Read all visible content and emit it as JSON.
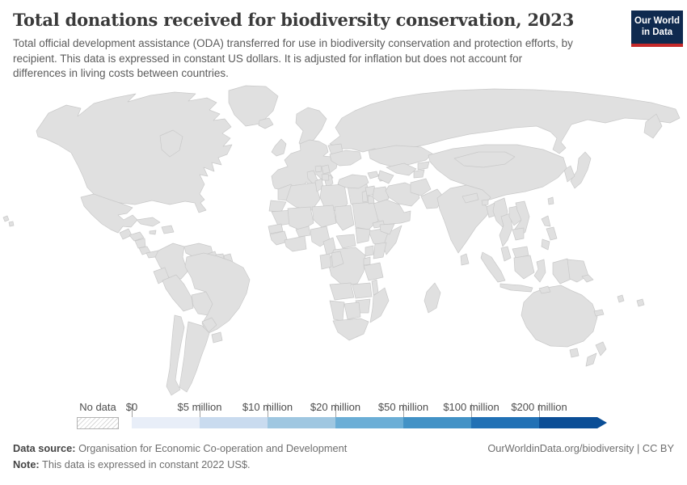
{
  "header": {
    "title": "Total donations received for biodiversity conservation, 2023",
    "subtitle": "Total official development assistance (ODA) transferred for use in biodiversity conservation and protection efforts, by recipient. This data is expressed in constant US dollars. It is adjusted for inflation but does not account for differences in living costs between countries.",
    "logo": {
      "line1": "Our World",
      "line2": "in Data",
      "bg_color": "#0f2a4f",
      "accent_color": "#c5292a"
    }
  },
  "footer": {
    "source_label": "Data source:",
    "source_text": "Organisation for Economic Co-operation and Development",
    "note_label": "Note:",
    "note_text": "This data is expressed in constant 2022 US$.",
    "link_text": "OurWorldinData.org/biodiversity | CC BY"
  },
  "chart_data": {
    "type": "heatmap",
    "variant": "world-choropleth",
    "title": "Total donations received for biodiversity conservation, 2023",
    "year": 2023,
    "unit": "constant 2022 US$",
    "legend": {
      "no_data_label": "No data",
      "tick_labels": [
        "$0",
        "$5 million",
        "$10 million",
        "$20 million",
        "$50 million",
        "$100 million",
        "$200 million"
      ],
      "colors": [
        "#e8eef8",
        "#c9dbef",
        "#9fc7e1",
        "#6baed6",
        "#4292c6",
        "#2171b5",
        "#0b4e96"
      ],
      "bucket_ranges": [
        "$0–$5 million",
        "$5–$10 million",
        "$10–$20 million",
        "$20–$50 million",
        "$50–$100 million",
        "$100–$200 million",
        "$200 million+"
      ],
      "no_data_bucket": 0
    },
    "countries": [
      {
        "id": "north-america",
        "name": "Canada and United States",
        "bucket": 0
      },
      {
        "id": "hawaii",
        "name": "Hawaii (United States)",
        "bucket": 0
      },
      {
        "id": "greenland",
        "name": "Greenland",
        "bucket": 0
      },
      {
        "id": "iceland",
        "name": "Iceland",
        "bucket": 0
      },
      {
        "id": "united-kingdom",
        "name": "United Kingdom & Ireland",
        "bucket": 0
      },
      {
        "id": "scandinavia",
        "name": "Scandinavia",
        "bucket": 0
      },
      {
        "id": "europe",
        "name": "Western & Central Europe",
        "bucket": 0
      },
      {
        "id": "italy",
        "name": "Italy",
        "bucket": 0
      },
      {
        "id": "greece",
        "name": "Greece",
        "bucket": 0
      },
      {
        "id": "russia",
        "name": "Russia",
        "bucket": 0
      },
      {
        "id": "japan",
        "name": "Japan",
        "bucket": 0
      },
      {
        "id": "korea",
        "name": "Korea",
        "bucket": 0
      },
      {
        "id": "saudi-arabia",
        "name": "Saudi Arabia & Gulf states",
        "bucket": 0
      },
      {
        "id": "chile",
        "name": "Chile",
        "bucket": 0
      },
      {
        "id": "australia",
        "name": "Australia",
        "bucket": 0
      },
      {
        "id": "new-zealand",
        "name": "New Zealand",
        "bucket": 0
      },
      {
        "id": "new-caledonia",
        "name": "New Caledonia",
        "bucket": 0
      },
      {
        "id": "french-guiana",
        "name": "French Guiana",
        "bucket": 0
      },
      {
        "id": "mexico",
        "name": "Mexico",
        "bucket": 7
      },
      {
        "id": "guatemala",
        "name": "Guatemala",
        "bucket": 5
      },
      {
        "id": "honduras",
        "name": "Honduras",
        "bucket": 4
      },
      {
        "id": "nicaragua",
        "name": "Nicaragua",
        "bucket": 2
      },
      {
        "id": "costa-rica",
        "name": "Costa Rica",
        "bucket": 2
      },
      {
        "id": "panama",
        "name": "Panama",
        "bucket": 5
      },
      {
        "id": "cuba",
        "name": "Cuba",
        "bucket": 4
      },
      {
        "id": "jamaica",
        "name": "Jamaica",
        "bucket": 2
      },
      {
        "id": "hispaniola",
        "name": "Haiti & Dominican Republic",
        "bucket": 3
      },
      {
        "id": "colombia",
        "name": "Colombia",
        "bucket": 7
      },
      {
        "id": "venezuela",
        "name": "Venezuela",
        "bucket": 1
      },
      {
        "id": "guyana",
        "name": "Guyana",
        "bucket": 3
      },
      {
        "id": "suriname",
        "name": "Suriname",
        "bucket": 2
      },
      {
        "id": "ecuador",
        "name": "Ecuador",
        "bucket": 5
      },
      {
        "id": "peru",
        "name": "Peru",
        "bucket": 5
      },
      {
        "id": "bolivia",
        "name": "Bolivia",
        "bucket": 5
      },
      {
        "id": "brazil",
        "name": "Brazil",
        "bucket": 6
      },
      {
        "id": "paraguay",
        "name": "Paraguay",
        "bucket": 2
      },
      {
        "id": "uruguay",
        "name": "Uruguay",
        "bucket": 3
      },
      {
        "id": "argentina",
        "name": "Argentina",
        "bucket": 3
      },
      {
        "id": "morocco",
        "name": "Morocco",
        "bucket": 5
      },
      {
        "id": "western-sahara",
        "name": "Western Sahara",
        "bucket": 3
      },
      {
        "id": "algeria",
        "name": "Algeria",
        "bucket": 3
      },
      {
        "id": "tunisia",
        "name": "Tunisia",
        "bucket": 2
      },
      {
        "id": "libya",
        "name": "Libya",
        "bucket": 2
      },
      {
        "id": "egypt",
        "name": "Egypt",
        "bucket": 5
      },
      {
        "id": "mauritania",
        "name": "Mauritania",
        "bucket": 4
      },
      {
        "id": "senegal",
        "name": "Senegal & Gambia",
        "bucket": 5
      },
      {
        "id": "guinea-coast",
        "name": "Guinea, Sierra Leone & Liberia",
        "bucket": 6
      },
      {
        "id": "mali",
        "name": "Mali",
        "bucket": 4
      },
      {
        "id": "burkina-faso",
        "name": "Burkina Faso",
        "bucket": 5
      },
      {
        "id": "cote-divoire-ghana",
        "name": "Côte d'Ivoire, Ghana, Togo & Benin",
        "bucket": 6
      },
      {
        "id": "niger",
        "name": "Niger",
        "bucket": 3
      },
      {
        "id": "nigeria",
        "name": "Nigeria",
        "bucket": 6
      },
      {
        "id": "chad",
        "name": "Chad",
        "bucket": 5
      },
      {
        "id": "sudan",
        "name": "Sudan",
        "bucket": 6
      },
      {
        "id": "eritrea",
        "name": "Eritrea",
        "bucket": 4
      },
      {
        "id": "ethiopia",
        "name": "Ethiopia",
        "bucket": 6
      },
      {
        "id": "somalia",
        "name": "Somalia",
        "bucket": 5
      },
      {
        "id": "cameroon",
        "name": "Cameroon",
        "bucket": 5
      },
      {
        "id": "central-african-republic",
        "name": "Central African Republic",
        "bucket": 3
      },
      {
        "id": "south-sudan",
        "name": "South Sudan",
        "bucket": 5
      },
      {
        "id": "gabon",
        "name": "Gabon & Equatorial Guinea",
        "bucket": 1
      },
      {
        "id": "congo",
        "name": "Congo",
        "bucket": 4
      },
      {
        "id": "democratic-republic-of-congo",
        "name": "Democratic Republic of Congo",
        "bucket": 7
      },
      {
        "id": "uganda",
        "name": "Uganda",
        "bucket": 5
      },
      {
        "id": "kenya",
        "name": "Kenya",
        "bucket": 6
      },
      {
        "id": "rwanda-burundi",
        "name": "Rwanda & Burundi",
        "bucket": 6
      },
      {
        "id": "tanzania",
        "name": "Tanzania",
        "bucket": 6
      },
      {
        "id": "angola",
        "name": "Angola",
        "bucket": 4
      },
      {
        "id": "zambia",
        "name": "Zambia",
        "bucket": 5
      },
      {
        "id": "malawi",
        "name": "Malawi",
        "bucket": 6
      },
      {
        "id": "mozambique",
        "name": "Mozambique",
        "bucket": 7
      },
      {
        "id": "zimbabwe",
        "name": "Zimbabwe",
        "bucket": 4
      },
      {
        "id": "botswana",
        "name": "Botswana",
        "bucket": 1
      },
      {
        "id": "namibia",
        "name": "Namibia",
        "bucket": 3
      },
      {
        "id": "south-africa",
        "name": "South Africa",
        "bucket": 4
      },
      {
        "id": "madagascar",
        "name": "Madagascar",
        "bucket": 6
      },
      {
        "id": "belarus",
        "name": "Belarus",
        "bucket": 1
      },
      {
        "id": "ukraine",
        "name": "Ukraine",
        "bucket": 5
      },
      {
        "id": "serbia",
        "name": "Serbia",
        "bucket": 7
      },
      {
        "id": "bosnia",
        "name": "Bosnia and Herzegovina",
        "bucket": 4
      },
      {
        "id": "albania",
        "name": "Albania & North Macedonia",
        "bucket": 3
      },
      {
        "id": "turkey",
        "name": "Turkey",
        "bucket": 5
      },
      {
        "id": "syria",
        "name": "Syria",
        "bucket": 3
      },
      {
        "id": "lebanon-israel",
        "name": "Lebanon & Israel",
        "bucket": 5
      },
      {
        "id": "jordan",
        "name": "Jordan",
        "bucket": 4
      },
      {
        "id": "iraq",
        "name": "Iraq",
        "bucket": 4
      },
      {
        "id": "iran",
        "name": "Iran",
        "bucket": 1
      },
      {
        "id": "yemen",
        "name": "Yemen",
        "bucket": 1
      },
      {
        "id": "georgia",
        "name": "Georgia",
        "bucket": 4
      },
      {
        "id": "azerbaijan",
        "name": "Azerbaijan & Armenia",
        "bucket": 6
      },
      {
        "id": "kazakhstan",
        "name": "Kazakhstan",
        "bucket": 1
      },
      {
        "id": "uzbekistan",
        "name": "Uzbekistan",
        "bucket": 6
      },
      {
        "id": "turkmenistan",
        "name": "Turkmenistan",
        "bucket": 3
      },
      {
        "id": "kyrgyzstan",
        "name": "Kyrgyzstan",
        "bucket": 3
      },
      {
        "id": "tajikistan",
        "name": "Tajikistan",
        "bucket": 5
      },
      {
        "id": "afghanistan",
        "name": "Afghanistan",
        "bucket": 5
      },
      {
        "id": "pakistan",
        "name": "Pakistan",
        "bucket": 6
      },
      {
        "id": "india",
        "name": "India",
        "bucket": 7
      },
      {
        "id": "nepal",
        "name": "Nepal",
        "bucket": 4
      },
      {
        "id": "bhutan",
        "name": "Bhutan",
        "bucket": 3
      },
      {
        "id": "bangladesh",
        "name": "Bangladesh",
        "bucket": 7
      },
      {
        "id": "sri-lanka",
        "name": "Sri Lanka",
        "bucket": 4
      },
      {
        "id": "myanmar",
        "name": "Myanmar",
        "bucket": 2
      },
      {
        "id": "thailand",
        "name": "Thailand",
        "bucket": 3
      },
      {
        "id": "laos",
        "name": "Laos",
        "bucket": 4
      },
      {
        "id": "vietnam",
        "name": "Vietnam",
        "bucket": 6
      },
      {
        "id": "cambodia",
        "name": "Cambodia",
        "bucket": 4
      },
      {
        "id": "malaysia",
        "name": "Malaysia",
        "bucket": 2
      },
      {
        "id": "china",
        "name": "China",
        "bucket": 1
      },
      {
        "id": "mongolia",
        "name": "Mongolia",
        "bucket": 4
      },
      {
        "id": "taiwan",
        "name": "Taiwan",
        "bucket": 4
      },
      {
        "id": "philippines",
        "name": "Philippines",
        "bucket": 6
      },
      {
        "id": "indonesia",
        "name": "Indonesia",
        "bucket": 6
      },
      {
        "id": "timor-leste",
        "name": "Timor-Leste",
        "bucket": 4
      },
      {
        "id": "papua-new-guinea",
        "name": "Papua New Guinea",
        "bucket": 4
      },
      {
        "id": "solomon-islands",
        "name": "Solomon Islands",
        "bucket": 4
      },
      {
        "id": "vanuatu",
        "name": "Vanuatu",
        "bucket": 4
      },
      {
        "id": "fiji",
        "name": "Fiji",
        "bucket": 5
      }
    ]
  }
}
